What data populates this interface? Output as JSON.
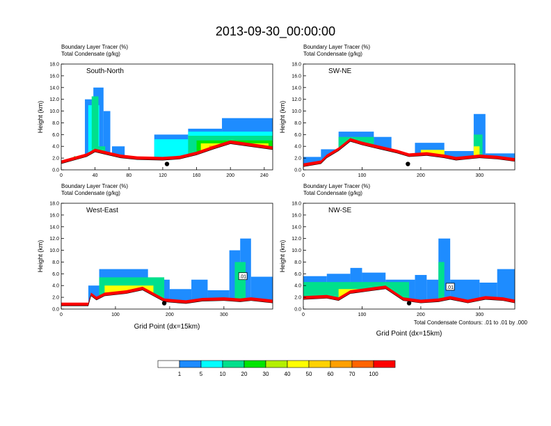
{
  "page_title": "2013-09-30_00:00:00",
  "palette": [
    "#ffffff",
    "#1e8cff",
    "#00ffff",
    "#00e08c",
    "#00e600",
    "#b4f000",
    "#ffff00",
    "#ffd200",
    "#ffa000",
    "#ff6400",
    "#ff0000"
  ],
  "colorbar": {
    "labels": [
      "1",
      "5",
      "10",
      "20",
      "30",
      "40",
      "50",
      "60",
      "70",
      "100"
    ]
  },
  "contour_note": "Total Condensate Contours: .01 to .01 by .000",
  "chart_data": [
    {
      "type": "heatmap",
      "cross_section": "South-North",
      "title_line1": "Boundary Layer Tracer   (%)",
      "title_line2": "Total Condensate   (g/kg)",
      "ylabel": "Height (km)",
      "xlabel": "",
      "xlim": [
        0,
        250
      ],
      "ylim": [
        0,
        18
      ],
      "xticks": [
        "0",
        "40",
        "80",
        "120",
        "160",
        "200",
        "240"
      ],
      "yticks": [
        "0.0",
        "2.0",
        "4.0",
        "6.0",
        "8.0",
        "10.0",
        "12.0",
        "14.0",
        "16.0",
        "18.0"
      ],
      "marker_x": 125,
      "contour_labels": [],
      "profile": [
        [
          0,
          1
        ],
        [
          20,
          1.8
        ],
        [
          30,
          2.2
        ],
        [
          40,
          3
        ],
        [
          55,
          2.5
        ],
        [
          70,
          2
        ],
        [
          90,
          1.7
        ],
        [
          120,
          1.6
        ],
        [
          140,
          1.8
        ],
        [
          160,
          2.5
        ],
        [
          180,
          3.5
        ],
        [
          200,
          4.4
        ],
        [
          220,
          4
        ],
        [
          240,
          3.6
        ],
        [
          250,
          3.4
        ]
      ],
      "bands": [
        {
          "x0": 28,
          "x1": 38,
          "top": 12,
          "level": 1
        },
        {
          "x0": 38,
          "x1": 50,
          "top": 14,
          "level": 1
        },
        {
          "x0": 50,
          "x1": 58,
          "top": 10,
          "level": 1
        },
        {
          "x0": 32,
          "x1": 45,
          "top": 11,
          "level": 2
        },
        {
          "x0": 36,
          "x1": 44,
          "top": 12.5,
          "level": 3
        },
        {
          "x0": 40,
          "x1": 52,
          "top": 4,
          "level": 3
        },
        {
          "x0": 15,
          "x1": 45,
          "top": 2.3,
          "level": 4
        },
        {
          "x0": 60,
          "x1": 75,
          "top": 4,
          "level": 1
        },
        {
          "x0": 110,
          "x1": 150,
          "top": 6,
          "level": 1
        },
        {
          "x0": 150,
          "x1": 190,
          "top": 7,
          "level": 1
        },
        {
          "x0": 190,
          "x1": 250,
          "top": 8.8,
          "level": 1
        },
        {
          "x0": 110,
          "x1": 150,
          "top": 5.2,
          "level": 2
        },
        {
          "x0": 150,
          "x1": 250,
          "top": 6.5,
          "level": 2
        },
        {
          "x0": 150,
          "x1": 250,
          "top": 5.8,
          "level": 3
        },
        {
          "x0": 160,
          "x1": 250,
          "top": 5,
          "level": 4
        },
        {
          "x0": 165,
          "x1": 245,
          "top": 4.5,
          "level": 6
        },
        {
          "x0": 175,
          "x1": 240,
          "top": 4.1,
          "level": 8
        }
      ]
    },
    {
      "type": "heatmap",
      "cross_section": "SW-NE",
      "title_line1": "Boundary Layer Tracer   (%)",
      "title_line2": "Total Condensate   (g/kg)",
      "ylabel": "Height (km)",
      "xlabel": "",
      "xlim": [
        0,
        360
      ],
      "ylim": [
        0,
        18
      ],
      "xticks": [
        "0",
        "100",
        "200",
        "300"
      ],
      "yticks": [
        "0.0",
        "2.0",
        "4.0",
        "6.0",
        "8.0",
        "10.0",
        "12.0",
        "14.0",
        "16.0",
        "18.0"
      ],
      "marker_x": 178,
      "contour_labels": [],
      "profile": [
        [
          0,
          0.5
        ],
        [
          30,
          1
        ],
        [
          40,
          2
        ],
        [
          60,
          3.2
        ],
        [
          80,
          4.8
        ],
        [
          100,
          4.2
        ],
        [
          130,
          3.5
        ],
        [
          160,
          2.8
        ],
        [
          180,
          2.2
        ],
        [
          210,
          2.4
        ],
        [
          240,
          2
        ],
        [
          260,
          1.6
        ],
        [
          280,
          1.8
        ],
        [
          300,
          2
        ],
        [
          330,
          1.8
        ],
        [
          360,
          1.4
        ]
      ],
      "bands": [
        {
          "x0": 0,
          "x1": 30,
          "top": 2.2,
          "level": 1
        },
        {
          "x0": 30,
          "x1": 60,
          "top": 3.5,
          "level": 1
        },
        {
          "x0": 60,
          "x1": 120,
          "top": 6.5,
          "level": 1
        },
        {
          "x0": 120,
          "x1": 150,
          "top": 5.6,
          "level": 1
        },
        {
          "x0": 190,
          "x1": 240,
          "top": 4.6,
          "level": 1
        },
        {
          "x0": 240,
          "x1": 290,
          "top": 3.2,
          "level": 1
        },
        {
          "x0": 290,
          "x1": 310,
          "top": 9.5,
          "level": 1
        },
        {
          "x0": 310,
          "x1": 360,
          "top": 2.8,
          "level": 1
        },
        {
          "x0": 60,
          "x1": 120,
          "top": 5.6,
          "level": 3
        },
        {
          "x0": 290,
          "x1": 305,
          "top": 6,
          "level": 3
        },
        {
          "x0": 290,
          "x1": 300,
          "top": 4,
          "level": 6
        },
        {
          "x0": 200,
          "x1": 240,
          "top": 3.4,
          "level": 6
        }
      ]
    },
    {
      "type": "heatmap",
      "cross_section": "West-East",
      "title_line1": "Boundary Layer Tracer   (%)",
      "title_line2": "Total Condensate   (g/kg)",
      "ylabel": "Height (km)",
      "xlabel": "Grid Point (dx=15km)",
      "xlim": [
        0,
        390
      ],
      "ylim": [
        0,
        18
      ],
      "xticks": [
        "0",
        "100",
        "200",
        "300"
      ],
      "yticks": [
        "0.0",
        "2.0",
        "4.0",
        "6.0",
        "8.0",
        "10.0",
        "12.0",
        "14.0",
        "16.0",
        "18.0"
      ],
      "marker_x": 190,
      "contour_labels": [
        {
          "x": 335,
          "y": 5.6,
          "text": ".01"
        }
      ],
      "profile": [
        [
          0,
          0.5
        ],
        [
          50,
          0.5
        ],
        [
          55,
          2.2
        ],
        [
          65,
          1.5
        ],
        [
          80,
          2.2
        ],
        [
          120,
          2.6
        ],
        [
          150,
          3.2
        ],
        [
          170,
          2.2
        ],
        [
          190,
          1.2
        ],
        [
          230,
          0.9
        ],
        [
          260,
          1.3
        ],
        [
          300,
          1.4
        ],
        [
          330,
          1.2
        ],
        [
          350,
          1.4
        ],
        [
          390,
          1
        ]
      ],
      "bands": [
        {
          "x0": 50,
          "x1": 70,
          "top": 4,
          "level": 1
        },
        {
          "x0": 70,
          "x1": 160,
          "top": 6.8,
          "level": 1
        },
        {
          "x0": 160,
          "x1": 200,
          "top": 5,
          "level": 1
        },
        {
          "x0": 200,
          "x1": 240,
          "top": 3.4,
          "level": 1
        },
        {
          "x0": 240,
          "x1": 270,
          "top": 5,
          "level": 1
        },
        {
          "x0": 270,
          "x1": 310,
          "top": 3.2,
          "level": 1
        },
        {
          "x0": 310,
          "x1": 330,
          "top": 10,
          "level": 1
        },
        {
          "x0": 330,
          "x1": 350,
          "top": 12,
          "level": 1
        },
        {
          "x0": 350,
          "x1": 390,
          "top": 5.5,
          "level": 1
        },
        {
          "x0": 70,
          "x1": 190,
          "top": 5.4,
          "level": 3
        },
        {
          "x0": 320,
          "x1": 340,
          "top": 8,
          "level": 3
        },
        {
          "x0": 80,
          "x1": 170,
          "top": 4,
          "level": 6
        }
      ]
    },
    {
      "type": "heatmap",
      "cross_section": "NW-SE",
      "title_line1": "Boundary Layer Tracer   (%)",
      "title_line2": "Total Condensate   (g/kg)",
      "ylabel": "Height (km)",
      "xlabel": "Grid Point (dx=15km)",
      "xlim": [
        0,
        360
      ],
      "ylim": [
        0,
        18
      ],
      "xticks": [
        "0",
        "100",
        "200",
        "300"
      ],
      "yticks": [
        "0.0",
        "2.0",
        "4.0",
        "6.0",
        "8.0",
        "10.0",
        "12.0",
        "14.0",
        "16.0",
        "18.0"
      ],
      "marker_x": 180,
      "contour_labels": [
        {
          "x": 250,
          "y": 3.8,
          "text": ".01"
        }
      ],
      "profile": [
        [
          0,
          1.6
        ],
        [
          40,
          1.8
        ],
        [
          60,
          1.4
        ],
        [
          80,
          2.6
        ],
        [
          110,
          3
        ],
        [
          140,
          3.4
        ],
        [
          170,
          1.4
        ],
        [
          200,
          1
        ],
        [
          230,
          1.2
        ],
        [
          250,
          1.6
        ],
        [
          280,
          1
        ],
        [
          310,
          1.6
        ],
        [
          340,
          1.4
        ],
        [
          360,
          1
        ]
      ],
      "bands": [
        {
          "x0": 0,
          "x1": 40,
          "top": 5.6,
          "level": 1
        },
        {
          "x0": 40,
          "x1": 80,
          "top": 6,
          "level": 1
        },
        {
          "x0": 80,
          "x1": 100,
          "top": 7,
          "level": 1
        },
        {
          "x0": 100,
          "x1": 140,
          "top": 6.2,
          "level": 1
        },
        {
          "x0": 140,
          "x1": 190,
          "top": 5,
          "level": 1
        },
        {
          "x0": 190,
          "x1": 210,
          "top": 5.8,
          "level": 1
        },
        {
          "x0": 210,
          "x1": 230,
          "top": 5,
          "level": 1
        },
        {
          "x0": 230,
          "x1": 250,
          "top": 12,
          "level": 1
        },
        {
          "x0": 250,
          "x1": 300,
          "top": 5,
          "level": 1
        },
        {
          "x0": 300,
          "x1": 330,
          "top": 4.5,
          "level": 1
        },
        {
          "x0": 330,
          "x1": 360,
          "top": 6.8,
          "level": 1
        },
        {
          "x0": 0,
          "x1": 180,
          "top": 4.6,
          "level": 3
        },
        {
          "x0": 230,
          "x1": 240,
          "top": 8,
          "level": 3
        },
        {
          "x0": 60,
          "x1": 150,
          "top": 3.4,
          "level": 6
        }
      ]
    }
  ]
}
